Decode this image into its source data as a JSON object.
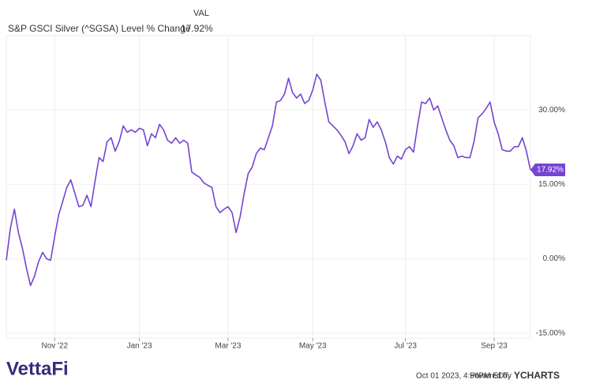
{
  "chart_data": {
    "type": "line",
    "legend_header": "VAL",
    "categories": [
      null,
      null,
      null,
      null,
      null,
      null,
      null,
      null,
      null,
      null,
      null,
      null,
      "Nov '22",
      null,
      null,
      null,
      null,
      null,
      null,
      null,
      null,
      null,
      null,
      null,
      null,
      null,
      null,
      null,
      null,
      null,
      null,
      null,
      null,
      "Jan '23",
      null,
      null,
      null,
      null,
      null,
      null,
      null,
      null,
      null,
      null,
      null,
      null,
      null,
      null,
      null,
      null,
      null,
      null,
      null,
      null,
      null,
      "Mar '23",
      null,
      null,
      null,
      null,
      null,
      null,
      null,
      null,
      null,
      null,
      null,
      null,
      null,
      null,
      null,
      null,
      null,
      null,
      null,
      null,
      "May '23",
      null,
      null,
      null,
      null,
      null,
      null,
      null,
      null,
      null,
      null,
      null,
      null,
      null,
      null,
      null,
      null,
      null,
      null,
      null,
      null,
      null,
      null,
      "Jul '23",
      null,
      null,
      null,
      null,
      null,
      null,
      null,
      null,
      null,
      null,
      null,
      null,
      null,
      null,
      null,
      null,
      null,
      null,
      null,
      null,
      null,
      "Sep '23",
      null,
      null,
      null,
      null,
      null,
      null,
      null,
      null,
      null
    ],
    "series": [
      {
        "name": "S&P GSCI Silver (^SGSA) Level % Change",
        "color": "#7444d2",
        "values": [
          -0.3,
          6.1,
          10.0,
          5.3,
          2.1,
          -1.9,
          -5.4,
          -3.5,
          -0.6,
          1.3,
          0.0,
          -0.3,
          4.5,
          8.9,
          11.6,
          14.4,
          15.9,
          13.2,
          10.5,
          10.8,
          12.8,
          10.5,
          15.6,
          20.4,
          19.6,
          23.6,
          24.4,
          21.7,
          23.6,
          26.8,
          25.5,
          26.0,
          25.5,
          26.3,
          26.0,
          22.8,
          25.2,
          24.4,
          27.1,
          26.0,
          23.9,
          23.3,
          24.4,
          23.3,
          23.9,
          23.3,
          17.5,
          16.9,
          16.4,
          15.3,
          14.8,
          14.4,
          10.5,
          9.3,
          10.0,
          10.5,
          9.3,
          5.3,
          8.5,
          13.2,
          17.2,
          18.5,
          21.2,
          22.3,
          22.0,
          24.4,
          26.8,
          31.6,
          31.9,
          33.2,
          36.4,
          33.5,
          32.4,
          33.2,
          31.3,
          31.9,
          34.0,
          37.2,
          36.0,
          31.6,
          27.6,
          26.8,
          26.0,
          24.9,
          23.6,
          21.2,
          22.8,
          25.2,
          23.9,
          24.4,
          28.1,
          26.5,
          27.6,
          26.0,
          23.6,
          20.4,
          19.1,
          20.7,
          20.1,
          22.0,
          22.6,
          21.5,
          26.8,
          31.6,
          31.3,
          32.4,
          30.0,
          30.8,
          28.4,
          26.0,
          23.9,
          22.8,
          20.4,
          20.7,
          20.4,
          20.4,
          23.6,
          28.4,
          29.2,
          30.3,
          31.6,
          27.6,
          25.2,
          22.0,
          21.7,
          21.7,
          22.6,
          22.6,
          24.4,
          21.7,
          17.92
        ],
        "value_labels": [
          null,
          null,
          null,
          null,
          null,
          null,
          null,
          null,
          null,
          null,
          null,
          null,
          null,
          null,
          null,
          null,
          null,
          null,
          null,
          null,
          null,
          null,
          null,
          null,
          null,
          null,
          null,
          null,
          null,
          null,
          null,
          null,
          null,
          null,
          null,
          null,
          null,
          null,
          null,
          null,
          null,
          null,
          null,
          null,
          null,
          null,
          null,
          null,
          null,
          null,
          null,
          null,
          null,
          null,
          null,
          null,
          null,
          null,
          null,
          null,
          null,
          null,
          null,
          null,
          null,
          null,
          null,
          null,
          null,
          null,
          null,
          null,
          null,
          null,
          null,
          null,
          null,
          null,
          null,
          null,
          null,
          null,
          null,
          null,
          null,
          null,
          null,
          null,
          null,
          null,
          null,
          null,
          null,
          null,
          null,
          null,
          null,
          null,
          null,
          null,
          null,
          null,
          null,
          null,
          null,
          null,
          null,
          null,
          null,
          null,
          null,
          null,
          null,
          null,
          null,
          null,
          null,
          null,
          null,
          null,
          null,
          null,
          null,
          null,
          null,
          null,
          null,
          null,
          null,
          null,
          "17.92%"
        ]
      }
    ],
    "ylim": [
      -16,
      45
    ],
    "yticks": [
      {
        "value": -15,
        "label": "-15.00%"
      },
      {
        "value": 0,
        "label": "0.00%"
      },
      {
        "value": 15,
        "label": "15.00%"
      },
      {
        "value": 30,
        "label": "30.00%"
      }
    ],
    "grid": true
  },
  "footer": {
    "brand": "VettaFi",
    "timestamp": "Oct 01 2023, 4:56PM EDT.",
    "powered": "Powered by",
    "provider": "YCHARTS"
  }
}
